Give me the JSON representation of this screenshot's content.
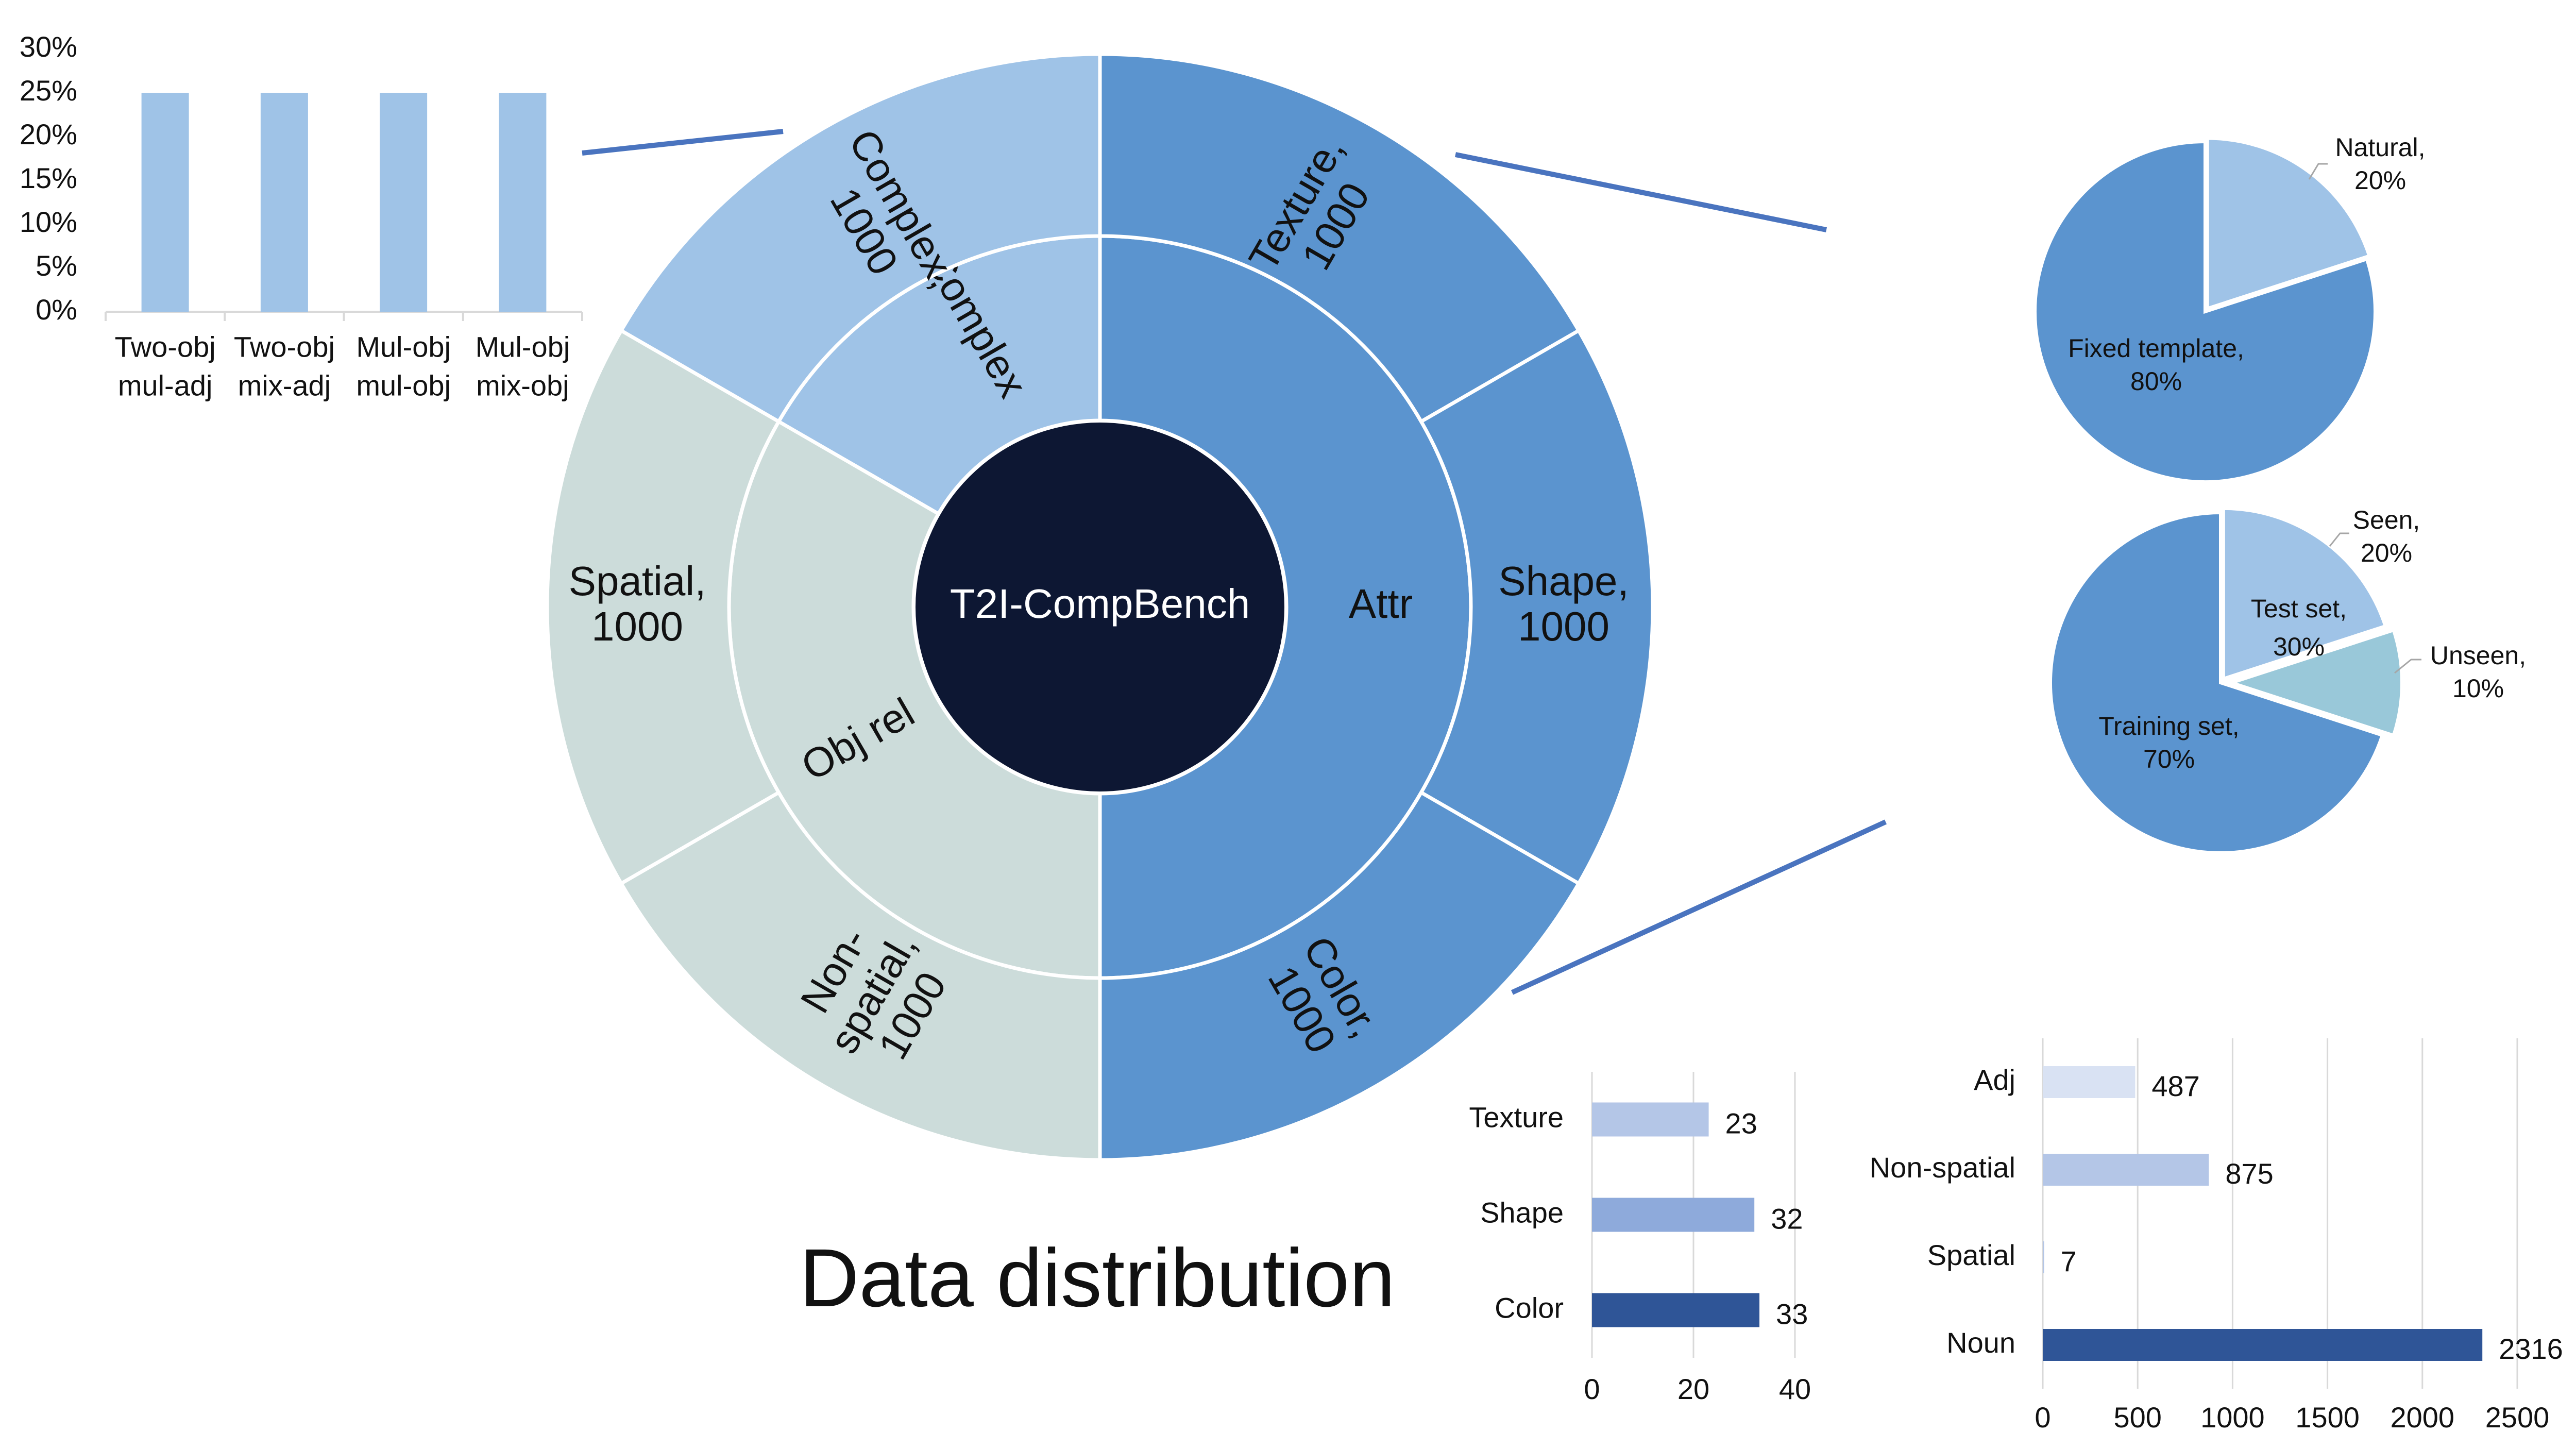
{
  "title": "Data distribution",
  "colors": {
    "attr": "#5b94cf",
    "complex": "#9fc3e7",
    "objrel": "#ccdcda",
    "center": "#0d1733",
    "connector": "#4a74bf",
    "pie_main": "#5b94cf",
    "pie_light": "#9fc3e7",
    "pie_teal": "#99c8d9",
    "bar_light": "#d9e2f3",
    "bar_mid": "#b4c6e7",
    "bar_mid2": "#8eaadb",
    "bar_dark": "#2f5597"
  },
  "chart_data": [
    {
      "type": "bar",
      "name": "complex-breakdown",
      "categories": [
        "Two-obj mul-adj",
        "Two-obj mix-adj",
        "Mul-obj mul-obj",
        "Mul-obj mix-obj"
      ],
      "category_lines": [
        [
          "Two-obj",
          "mul-adj"
        ],
        [
          "Two-obj",
          "mix-adj"
        ],
        [
          "Mul-obj",
          "mul-obj"
        ],
        [
          "Mul-obj",
          "mix-obj"
        ]
      ],
      "values": [
        25,
        25,
        25,
        25
      ],
      "ylim": [
        0,
        30
      ],
      "yticks": [
        "0%",
        "5%",
        "10%",
        "15%",
        "20%",
        "25%",
        "30%"
      ],
      "grid": false
    },
    {
      "type": "sunburst",
      "name": "data-distribution",
      "center": "T2I-CompBench",
      "inner": [
        {
          "label": "Attr",
          "value": 3000
        },
        {
          "label": "Obj rel",
          "value": 2000
        },
        {
          "label": "Complex",
          "value": 1000
        }
      ],
      "outer": [
        {
          "label_lines": [
            "Texture,",
            "1000"
          ],
          "value": 1000,
          "parent": "Attr"
        },
        {
          "label_lines": [
            "Shape,",
            "1000"
          ],
          "value": 1000,
          "parent": "Attr"
        },
        {
          "label_lines": [
            "Color,",
            "1000"
          ],
          "value": 1000,
          "parent": "Attr"
        },
        {
          "label_lines": [
            "Non-",
            "spatial,",
            "1000"
          ],
          "value": 1000,
          "parent": "Obj rel"
        },
        {
          "label_lines": [
            "Spatial,",
            "1000"
          ],
          "value": 1000,
          "parent": "Obj rel"
        },
        {
          "label_lines": [
            "Complex,",
            "1000"
          ],
          "value": 1000,
          "parent": "Complex"
        }
      ]
    },
    {
      "type": "pie",
      "name": "prompt-source",
      "slices": [
        {
          "label_lines": [
            "Natural,",
            "20%"
          ],
          "value": 20
        },
        {
          "label_lines": [
            "Fixed template,",
            "80%"
          ],
          "value": 80
        }
      ]
    },
    {
      "type": "pie",
      "name": "train-test-split",
      "slices": [
        {
          "label_lines": [
            "Seen,",
            "20%"
          ],
          "value": 20
        },
        {
          "label_lines": [
            "Unseen,",
            "10%"
          ],
          "value": 10
        },
        {
          "label_lines": [
            "Training set,",
            "70%"
          ],
          "value": 70
        }
      ],
      "annotations": [
        {
          "label_lines": [
            "Test set,",
            "30%"
          ]
        }
      ]
    },
    {
      "type": "bar",
      "orientation": "horizontal",
      "name": "attribute-counts",
      "categories": [
        "Texture",
        "Shape",
        "Color"
      ],
      "values": [
        23,
        32,
        33
      ],
      "xlim": [
        0,
        40
      ],
      "xticks": [
        0,
        20,
        40
      ],
      "grid": true
    },
    {
      "type": "bar",
      "orientation": "horizontal",
      "name": "word-type-counts",
      "categories": [
        "Adj",
        "Non-spatial",
        "Spatial",
        "Noun"
      ],
      "values": [
        487,
        875,
        7,
        2316
      ],
      "xlim": [
        0,
        2500
      ],
      "xticks": [
        0,
        500,
        1000,
        1500,
        2000,
        2500
      ],
      "grid": true
    }
  ]
}
